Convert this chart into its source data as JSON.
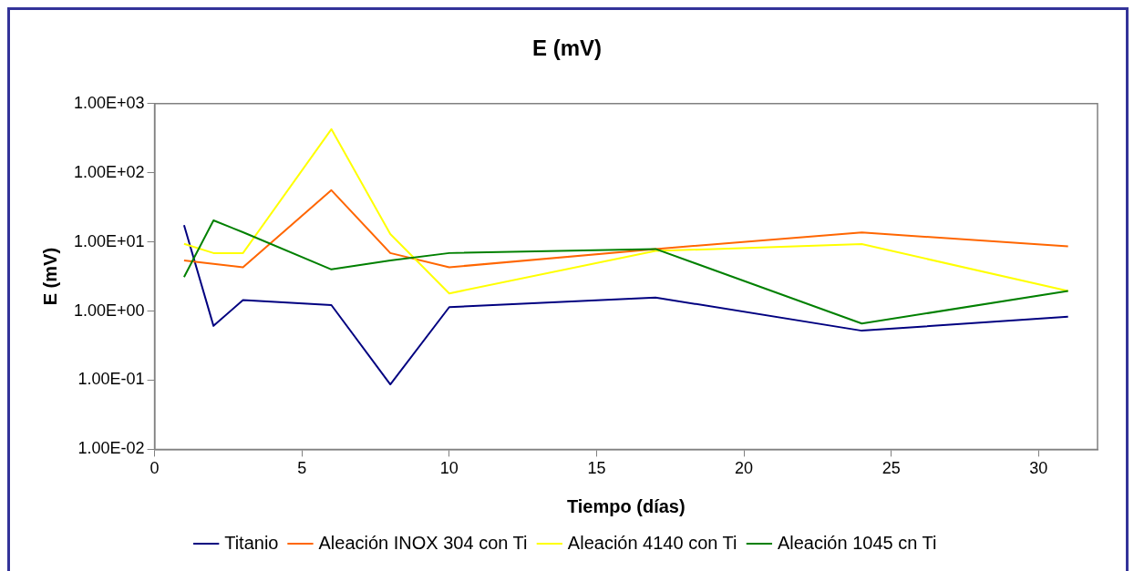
{
  "chart_data": {
    "type": "line",
    "title": "E (mV)",
    "xlabel": "Tiempo (días)",
    "ylabel": "E (mV)",
    "x": [
      1,
      2,
      3,
      6,
      8,
      10,
      17,
      24,
      31
    ],
    "series": [
      {
        "name": "Titanio",
        "color": "#000080",
        "values": [
          17.5,
          0.61,
          1.44,
          1.22,
          0.087,
          1.14,
          1.57,
          0.52,
          0.83
        ]
      },
      {
        "name": "Aleación INOX 304 con Ti",
        "color": "#ff6600",
        "values": [
          5.4,
          4.8,
          4.3,
          56,
          6.9,
          4.3,
          7.9,
          13.7,
          8.6
        ]
      },
      {
        "name": "Aleación 4140 con Ti",
        "color": "#ffff00",
        "values": [
          9.4,
          6.9,
          6.9,
          427,
          13,
          1.8,
          7.4,
          9.3,
          1.95
        ]
      },
      {
        "name": "Aleación 1045 cn Ti",
        "color": "#008000",
        "values": [
          3.1,
          20.5,
          13.8,
          4.0,
          5.4,
          6.9,
          7.9,
          0.66,
          1.95
        ]
      }
    ],
    "log": "y",
    "xlim": [
      0,
      32
    ],
    "xticks": [
      0,
      5,
      10,
      15,
      20,
      25,
      30
    ],
    "ylim": [
      0.01,
      1000
    ],
    "yticks": [
      {
        "value": 0.01,
        "label": "1.00E-02"
      },
      {
        "value": 0.1,
        "label": "1.00E-01"
      },
      {
        "value": 1,
        "label": "1.00E+00"
      },
      {
        "value": 10,
        "label": "1.00E+01"
      },
      {
        "value": 100,
        "label": "1.00E+02"
      },
      {
        "value": 1000,
        "label": "1.00E+03"
      }
    ],
    "grid": false,
    "legend": "bottom",
    "marker": "none",
    "line_style": "solid"
  }
}
